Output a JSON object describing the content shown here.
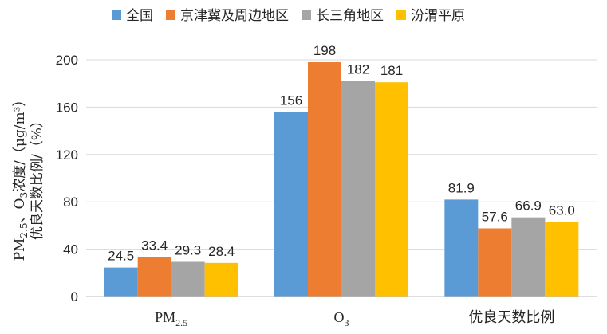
{
  "chart_data": {
    "type": "bar",
    "categories": [
      {
        "main": "PM",
        "sub": "2.5"
      },
      {
        "main": "O",
        "sub": "3"
      },
      {
        "main": "优良天数比例",
        "sub": ""
      }
    ],
    "series": [
      {
        "name": "全国",
        "color": "#5B9BD5",
        "values": [
          24.5,
          156,
          81.9
        ],
        "labels": [
          "24.5",
          "156",
          "81.9"
        ]
      },
      {
        "name": "京津冀及周边地区",
        "color": "#ED7D31",
        "values": [
          33.4,
          198,
          57.6
        ],
        "labels": [
          "33.4",
          "198",
          "57.6"
        ]
      },
      {
        "name": "长三角地区",
        "color": "#A5A5A5",
        "values": [
          29.3,
          182,
          66.9
        ],
        "labels": [
          "29.3",
          "182",
          "66.9"
        ]
      },
      {
        "name": "汾渭平原",
        "color": "#FFC000",
        "values": [
          28.4,
          181,
          63.0
        ],
        "labels": [
          "28.4",
          "181",
          "63.0"
        ]
      }
    ],
    "ylim": [
      0,
      200
    ],
    "yticks": [
      "0",
      "40",
      "80",
      "120",
      "160",
      "200"
    ],
    "ylabel": {
      "line1": [
        "PM",
        "2.5",
        "、O",
        "3",
        "浓度/（μg/m³）"
      ],
      "line2": "优良天数比例/（%）"
    },
    "legend_position": "top",
    "grid": true
  }
}
